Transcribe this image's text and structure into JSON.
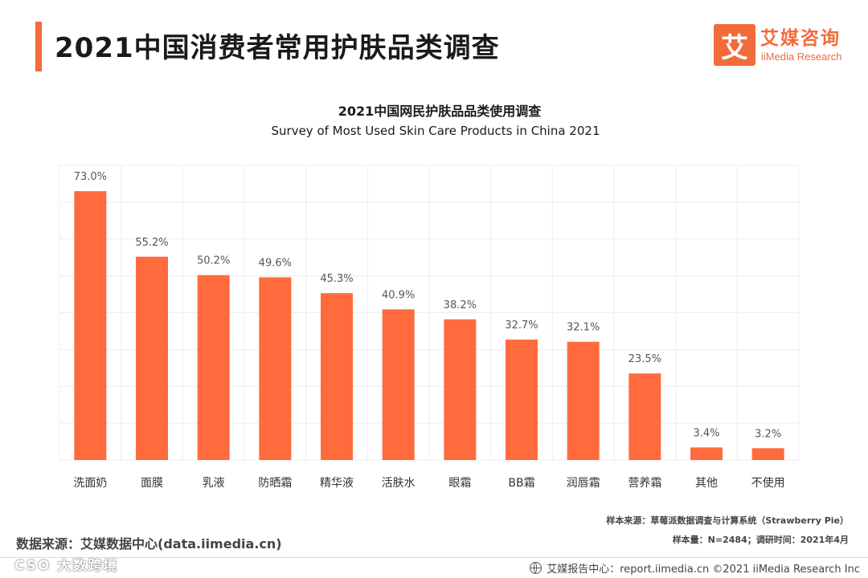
{
  "header": {
    "title": "2021中国消费者常用护肤品类调查"
  },
  "logo": {
    "mark": "艾",
    "cn": "艾媒咨询",
    "en": "iiMedia Research"
  },
  "chart_data": {
    "type": "bar",
    "title": "2021中国网民护肤品品类使用调查",
    "subtitle": "Survey of Most Used Skin Care Products in China 2021",
    "categories": [
      "洗面奶",
      "面膜",
      "乳液",
      "防晒霜",
      "精华液",
      "活肤水",
      "眼霜",
      "BB霜",
      "润唇霜",
      "营养霜",
      "其他",
      "不使用"
    ],
    "values": [
      73.0,
      55.2,
      50.2,
      49.6,
      45.3,
      40.9,
      38.2,
      32.7,
      32.1,
      23.5,
      3.4,
      3.2
    ],
    "labels": [
      "73.0%",
      "55.2%",
      "50.2%",
      "49.6%",
      "45.3%",
      "40.9%",
      "38.2%",
      "32.7%",
      "32.1%",
      "23.5%",
      "3.4%",
      "3.2%"
    ],
    "unit": "%",
    "ylim": [
      0,
      80
    ],
    "grid": true,
    "bar_color": "#ff6b3d"
  },
  "notes": {
    "source": "样本来源：草莓派数据调查与计算系统（Strawberry Pie）",
    "sample": "样本量：N=2484；调研时间：2021年4月"
  },
  "data_source": "数据来源：艾媒数据中心(data.iimedia.cn)",
  "watermark": "CSO 大数跨境",
  "footer": {
    "text": "艾媒报告中心：report.iimedia.cn   ©2021  iiMedia Research  Inc"
  }
}
